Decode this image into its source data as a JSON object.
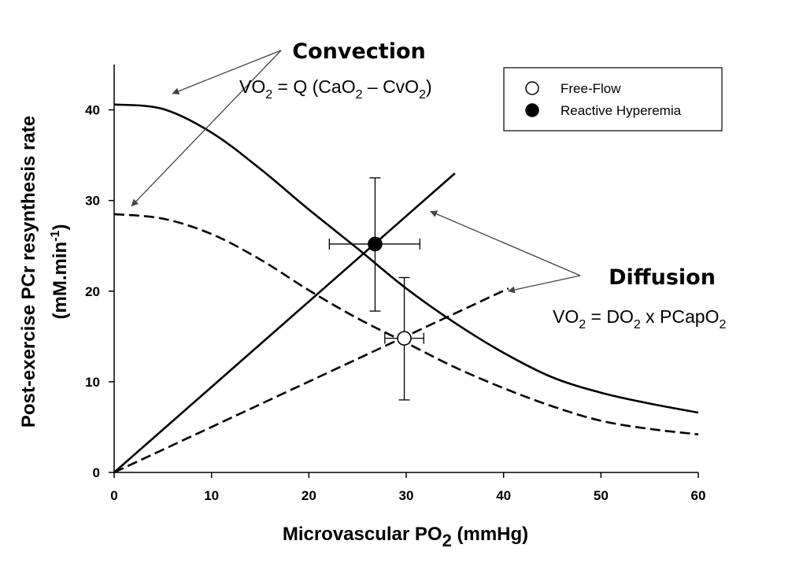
{
  "chart_data": {
    "type": "line",
    "x_axis": {
      "label_prefix": "Microvascular PO",
      "label_sub": "2",
      "label_suffix": " (mmHg)",
      "range": [
        0,
        60
      ],
      "ticks": [
        0,
        10,
        20,
        30,
        40,
        50,
        60
      ]
    },
    "y_axis": {
      "label_line1": "Post-exercise PCr resynthesis rate",
      "label_line2_prefix": "(mM.min",
      "label_line2_sup": "-1",
      "label_line2_suffix": ")",
      "range": [
        0,
        45
      ],
      "ticks": [
        0,
        10,
        20,
        30,
        40
      ]
    },
    "series": [
      {
        "name": "Convection (Reactive Hyperemia)",
        "style": "solid",
        "x": [
          0,
          5,
          10,
          15,
          20,
          25,
          30,
          35,
          40,
          45,
          50,
          55,
          60
        ],
        "y": [
          40.6,
          40.1,
          37.5,
          33.5,
          29.0,
          24.7,
          20.3,
          16.5,
          13.2,
          10.5,
          8.8,
          7.6,
          6.6
        ]
      },
      {
        "name": "Convection (Free-Flow)",
        "style": "dashed",
        "x": [
          0,
          5,
          10,
          15,
          20,
          25,
          30,
          35,
          40,
          45,
          50,
          55,
          60
        ],
        "y": [
          28.5,
          28.0,
          26.3,
          23.5,
          20.1,
          17.0,
          14.3,
          11.6,
          9.3,
          7.3,
          5.7,
          4.8,
          4.2
        ]
      },
      {
        "name": "Diffusion (Reactive Hyperemia)",
        "style": "solid",
        "x": [
          0,
          35
        ],
        "y": [
          0,
          33.0
        ]
      },
      {
        "name": "Diffusion (Free-Flow)",
        "style": "dashed",
        "x": [
          0,
          40.5
        ],
        "y": [
          0,
          20.3
        ]
      }
    ],
    "points": [
      {
        "name": "Reactive Hyperemia",
        "marker": "filled",
        "x": 26.8,
        "y": 25.2,
        "x_err": [
          22.1,
          31.4
        ],
        "y_err": [
          17.8,
          32.5
        ]
      },
      {
        "name": "Free-Flow",
        "marker": "open",
        "x": 29.8,
        "y": 14.8,
        "x_err": [
          27.8,
          31.8
        ],
        "y_err": [
          8.0,
          21.5
        ]
      }
    ],
    "legend": {
      "position": "top-right",
      "entries": [
        {
          "label": "Free-Flow",
          "marker": "open"
        },
        {
          "label": "Reactive Hyperemia",
          "marker": "filled"
        }
      ]
    },
    "annotations": {
      "convection": {
        "title": "Convection",
        "eq_parts": [
          "VO",
          "2",
          " = Q (CaO",
          "2",
          " – CvO",
          "2",
          ")"
        ],
        "arrow_targets": [
          {
            "x": 6.0,
            "y": 41.8
          },
          {
            "x": 1.8,
            "y": 29.4
          }
        ]
      },
      "diffusion": {
        "title": "Diffusion",
        "eq_parts": [
          "VO",
          "2",
          " = DO",
          "2",
          " x PCapO",
          "2"
        ],
        "arrow_targets": [
          {
            "x": 32.5,
            "y": 28.8
          },
          {
            "x": 40.5,
            "y": 20.0
          }
        ]
      }
    },
    "colors": {
      "line": "#000000",
      "annotation_arrow": "#444444",
      "background": "#ffffff"
    }
  }
}
